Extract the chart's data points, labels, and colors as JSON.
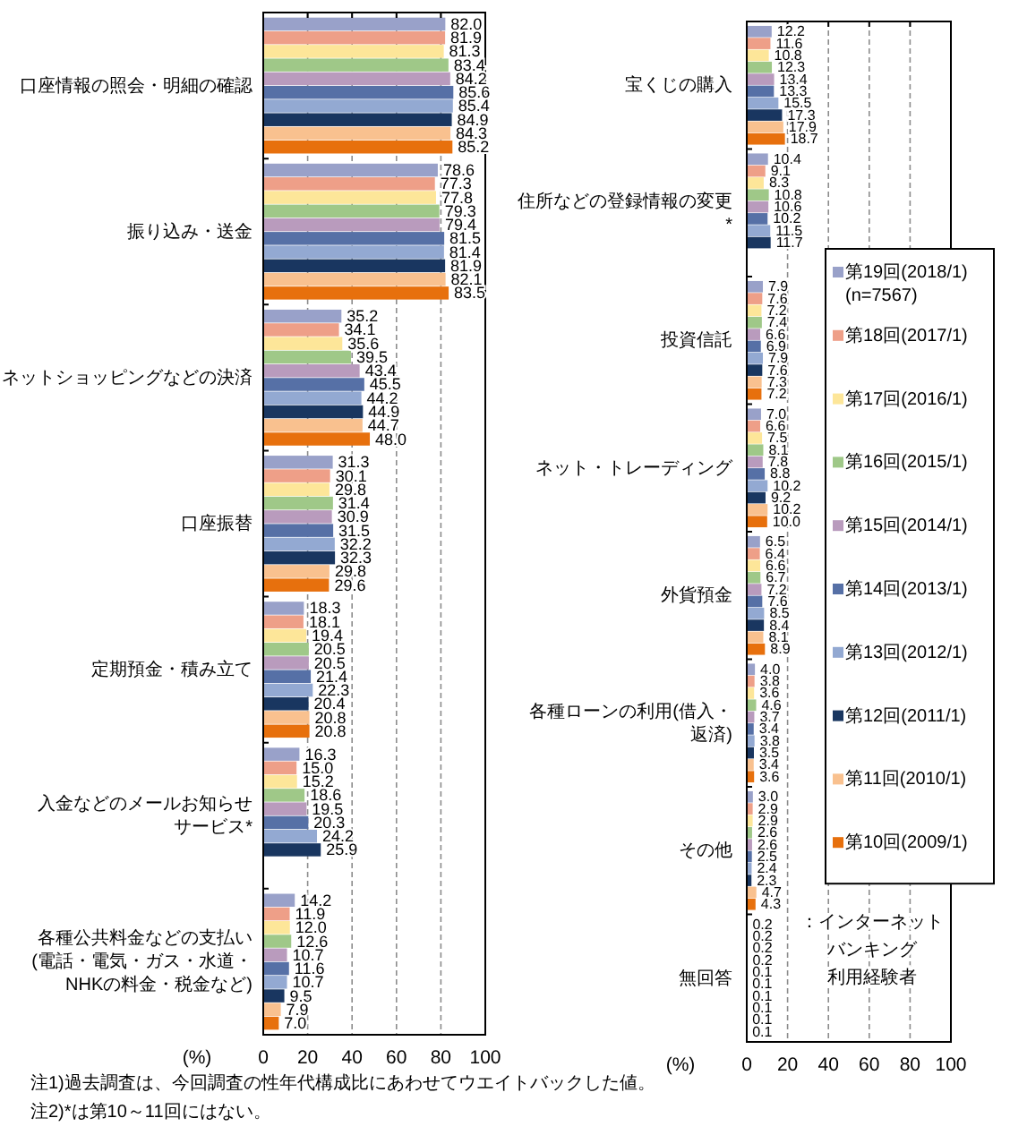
{
  "chart_data": [
    {
      "type": "bar",
      "orientation": "horizontal",
      "categories": [
        "口座情報の照会・明細の確認",
        "振り込み・送金",
        "ネットショッピングなどの決済",
        "口座振替",
        "定期預金・積み立て",
        "入金などのメールお知らせサービス*",
        "各種公共料金などの支払い(電話・電気・ガス・水道・NHKの料金・税金など)"
      ],
      "series": [
        {
          "color": "#99a1c9",
          "values": [
            82.0,
            78.6,
            35.2,
            31.3,
            18.3,
            16.3,
            14.2
          ],
          "value_labels": [
            "82.0",
            "78.6",
            "35.2",
            "31.3",
            "18.3",
            "16.3",
            "14.2"
          ]
        },
        {
          "color": "#ee9f88",
          "values": [
            81.9,
            77.3,
            34.1,
            30.1,
            18.1,
            15.0,
            11.9
          ],
          "value_labels": [
            "81.9",
            "77.3",
            "34.1",
            "30.1",
            "18.1",
            "15.0",
            "11.9"
          ]
        },
        {
          "color": "#fde699",
          "values": [
            81.3,
            77.8,
            35.6,
            29.8,
            19.4,
            15.2,
            12.0
          ],
          "value_labels": [
            "81.3",
            "77.8",
            "35.6",
            "29.8",
            "19.4",
            "15.2",
            "12.0"
          ]
        },
        {
          "color": "#9fc888",
          "values": [
            83.4,
            79.3,
            39.5,
            31.4,
            20.5,
            18.6,
            12.6
          ],
          "value_labels": [
            "83.4",
            "79.3",
            "39.5",
            "31.4",
            "20.5",
            "18.6",
            "12.6"
          ]
        },
        {
          "color": "#b99bbd",
          "values": [
            84.2,
            79.4,
            43.4,
            30.9,
            20.5,
            19.5,
            10.7
          ],
          "value_labels": [
            "84.2",
            "79.4",
            "43.4",
            "30.9",
            "20.5",
            "19.5",
            "10.7"
          ]
        },
        {
          "color": "#5670a6",
          "values": [
            85.6,
            81.5,
            45.5,
            31.5,
            21.4,
            20.3,
            11.6
          ],
          "value_labels": [
            "85.6",
            "81.5",
            "45.5",
            "31.5",
            "21.4",
            "20.3",
            "11.6"
          ]
        },
        {
          "color": "#93a9d2",
          "values": [
            85.4,
            81.4,
            44.2,
            32.2,
            22.3,
            24.2,
            10.7
          ],
          "value_labels": [
            "85.4",
            "81.4",
            "44.2",
            "32.2",
            "22.3",
            "24.2",
            "10.7"
          ]
        },
        {
          "color": "#193660",
          "values": [
            84.9,
            81.9,
            44.9,
            32.3,
            20.4,
            25.9,
            9.5
          ],
          "value_labels": [
            "84.9",
            "81.9",
            "44.9",
            "32.3",
            "20.4",
            "25.9",
            "9.5"
          ]
        },
        {
          "color": "#f9c18f",
          "values": [
            84.3,
            82.1,
            44.7,
            29.8,
            20.8,
            null,
            7.9
          ],
          "value_labels": [
            "84.3",
            "82.1",
            "44.7",
            "29.8",
            "20.8",
            null,
            "7.9"
          ]
        },
        {
          "color": "#e7700d",
          "values": [
            85.2,
            83.5,
            48.0,
            29.6,
            20.8,
            null,
            7.0
          ],
          "value_labels": [
            "85.2",
            "83.5",
            "48.0",
            "29.6",
            "20.8",
            null,
            "7.0"
          ]
        }
      ],
      "xlim": [
        0,
        100
      ],
      "xticks": [
        0,
        20,
        40,
        60,
        80,
        100
      ],
      "xlabel": "(%)",
      "grid": "x",
      "annotations": [
        "注1)過去調査は、今回調査の性年代構成比にあわせてウエイトバックした値。",
        "注2)*は第10～11回にはない。"
      ]
    },
    {
      "type": "bar",
      "orientation": "horizontal",
      "categories": [
        "宝くじの購入",
        "住所などの登録情報の変更*",
        "投資信託",
        "ネット・トレーディング",
        "外貨預金",
        "各種ローンの利用(借入・返済)",
        "その他",
        "無回答"
      ],
      "series": [
        {
          "name": "第19回(2018/1) (n=7567)",
          "color": "#99a1c9",
          "values": [
            12.2,
            10.4,
            7.9,
            7.0,
            6.5,
            4.0,
            3.0,
            0.2
          ],
          "value_labels": [
            "12.2",
            "10.4",
            "7.9",
            "7.0",
            "6.5",
            "4.0",
            "3.0",
            "0.2"
          ]
        },
        {
          "name": "第18回(2017/1)",
          "color": "#ee9f88",
          "values": [
            11.6,
            9.1,
            7.6,
            6.6,
            6.4,
            3.8,
            2.9,
            0.2
          ],
          "value_labels": [
            "11.6",
            "9.1",
            "7.6",
            "6.6",
            "6.4",
            "3.8",
            "2.9",
            "0.2"
          ]
        },
        {
          "name": "第17回(2016/1)",
          "color": "#fde699",
          "values": [
            10.8,
            8.3,
            7.2,
            7.5,
            6.6,
            3.6,
            2.9,
            0.2
          ],
          "value_labels": [
            "10.8",
            "8.3",
            "7.2",
            "7.5",
            "6.6",
            "3.6",
            "2.9",
            "0.2"
          ]
        },
        {
          "name": "第16回(2015/1)",
          "color": "#9fc888",
          "values": [
            12.3,
            10.8,
            7.4,
            8.1,
            6.7,
            4.6,
            2.6,
            0.2
          ],
          "value_labels": [
            "12.3",
            "10.8",
            "7.4",
            "8.1",
            "6.7",
            "4.6",
            "2.6",
            "0.2"
          ]
        },
        {
          "name": "第15回(2014/1)",
          "color": "#b99bbd",
          "values": [
            13.4,
            10.6,
            6.6,
            7.8,
            7.2,
            3.7,
            2.6,
            0.1
          ],
          "value_labels": [
            "13.4",
            "10.6",
            "6.6",
            "7.8",
            "7.2",
            "3.7",
            "2.6",
            "0.1"
          ]
        },
        {
          "name": "第14回(2013/1)",
          "color": "#5670a6",
          "values": [
            13.3,
            10.2,
            6.9,
            8.8,
            7.6,
            3.4,
            2.5,
            0.1
          ],
          "value_labels": [
            "13.3",
            "10.2",
            "6.9",
            "8.8",
            "7.6",
            "3.4",
            "2.5",
            "0.1"
          ]
        },
        {
          "name": "第13回(2012/1)",
          "color": "#93a9d2",
          "values": [
            15.5,
            11.5,
            7.9,
            10.2,
            8.5,
            3.8,
            2.4,
            0.1
          ],
          "value_labels": [
            "15.5",
            "11.5",
            "7.9",
            "10.2",
            "8.5",
            "3.8",
            "2.4",
            "0.1"
          ]
        },
        {
          "name": "第12回(2011/1)",
          "color": "#193660",
          "values": [
            17.3,
            11.7,
            7.6,
            9.2,
            8.4,
            3.5,
            2.3,
            0.1
          ],
          "value_labels": [
            "17.3",
            "11.7",
            "7.6",
            "9.2",
            "8.4",
            "3.5",
            "2.3",
            "0.1"
          ]
        },
        {
          "name": "第11回(2010/1)",
          "color": "#f9c18f",
          "values": [
            17.9,
            null,
            7.3,
            10.2,
            8.1,
            3.4,
            4.7,
            0.1
          ],
          "value_labels": [
            "17.9",
            null,
            "7.3",
            "10.2",
            "8.1",
            "3.4",
            "4.7",
            "0.1"
          ]
        },
        {
          "name": "第10回(2009/1)",
          "color": "#e7700d",
          "values": [
            18.7,
            null,
            7.2,
            10.0,
            8.9,
            3.6,
            4.3,
            0.1
          ],
          "value_labels": [
            "18.7",
            null,
            "7.2",
            "10.0",
            "8.9",
            "3.6",
            "4.3",
            "0.1"
          ]
        }
      ],
      "xlim": [
        0,
        100
      ],
      "xticks": [
        0,
        20,
        40,
        60,
        80,
        100
      ],
      "xlabel": "(%)",
      "grid": "x",
      "legend": "right",
      "annotations": [
        "：インターネットバンキング利用経験者"
      ]
    }
  ]
}
